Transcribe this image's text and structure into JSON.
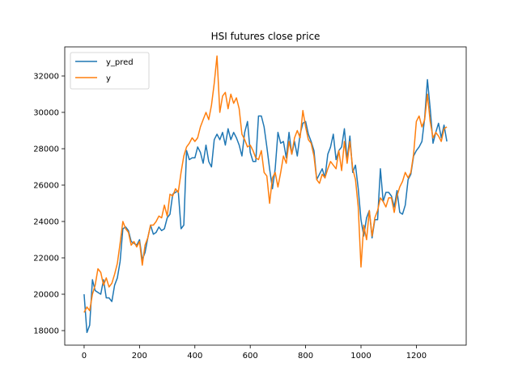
{
  "chart_data": {
    "type": "line",
    "title": "HSI futures close price",
    "xlabel": "",
    "ylabel": "",
    "xlim": [
      -70,
      1380
    ],
    "ylim": [
      17200,
      33600
    ],
    "xticks": [
      0,
      200,
      400,
      600,
      800,
      1000,
      1200
    ],
    "yticks": [
      18000,
      20000,
      22000,
      24000,
      26000,
      28000,
      30000,
      32000
    ],
    "grid": false,
    "legend": "top-left",
    "colors": {
      "y_pred": "#1f77b4",
      "y": "#ff7f0e"
    },
    "series": [
      {
        "name": "y_pred",
        "x": [
          0,
          10,
          20,
          30,
          40,
          50,
          60,
          70,
          80,
          90,
          100,
          110,
          120,
          130,
          140,
          150,
          160,
          170,
          180,
          190,
          200,
          210,
          220,
          230,
          240,
          250,
          260,
          270,
          280,
          290,
          300,
          310,
          320,
          330,
          340,
          350,
          360,
          370,
          380,
          390,
          400,
          410,
          420,
          430,
          440,
          450,
          460,
          470,
          480,
          490,
          500,
          510,
          520,
          530,
          540,
          550,
          560,
          570,
          580,
          590,
          600,
          610,
          620,
          630,
          640,
          650,
          660,
          670,
          680,
          690,
          700,
          710,
          720,
          730,
          740,
          750,
          760,
          770,
          780,
          790,
          800,
          810,
          820,
          830,
          840,
          850,
          860,
          870,
          880,
          890,
          900,
          910,
          920,
          930,
          940,
          950,
          960,
          970,
          980,
          990,
          1000,
          1010,
          1020,
          1030,
          1040,
          1050,
          1060,
          1070,
          1080,
          1090,
          1100,
          1110,
          1120,
          1130,
          1140,
          1150,
          1160,
          1170,
          1180,
          1190,
          1200,
          1210,
          1220,
          1230,
          1240,
          1250,
          1260,
          1270,
          1280,
          1290,
          1300,
          1310
        ],
        "values": [
          20000,
          17900,
          18300,
          20800,
          20200,
          20100,
          20000,
          20800,
          19800,
          19800,
          19600,
          20500,
          20900,
          21800,
          23600,
          23700,
          23500,
          22900,
          22800,
          22700,
          23000,
          21900,
          22300,
          23100,
          23800,
          23300,
          23400,
          23700,
          23500,
          23600,
          24200,
          24400,
          25500,
          25600,
          25700,
          23600,
          23800,
          27900,
          27400,
          27500,
          27500,
          28100,
          27800,
          27200,
          28200,
          27300,
          27000,
          28500,
          28800,
          28500,
          28900,
          28200,
          29100,
          28500,
          28900,
          28600,
          28200,
          27600,
          28900,
          29500,
          27800,
          27300,
          27300,
          29800,
          29800,
          29200,
          28100,
          26900,
          25800,
          26900,
          28900,
          28300,
          28400,
          27500,
          28900,
          27700,
          28400,
          27600,
          28800,
          29400,
          29500,
          28800,
          28400,
          27900,
          26300,
          26600,
          26900,
          26400,
          27700,
          28100,
          28800,
          27400,
          27900,
          28100,
          29100,
          27400,
          28700,
          26700,
          27100,
          25800,
          24100,
          23200,
          24200,
          24600,
          23100,
          24100,
          24100,
          26900,
          25100,
          25600,
          25600,
          25400,
          24800,
          25700,
          24500,
          24400,
          24900,
          26300,
          26600,
          27600,
          27900,
          28100,
          28400,
          29700,
          31800,
          30200,
          28300,
          28900,
          29400,
          28600,
          29300,
          28400
        ]
      },
      {
        "name": "y",
        "x": [
          0,
          10,
          20,
          30,
          40,
          50,
          60,
          70,
          80,
          90,
          100,
          110,
          120,
          130,
          140,
          150,
          160,
          170,
          180,
          190,
          200,
          210,
          220,
          230,
          240,
          250,
          260,
          270,
          280,
          290,
          300,
          310,
          320,
          330,
          340,
          350,
          360,
          370,
          380,
          390,
          400,
          410,
          420,
          430,
          440,
          450,
          460,
          470,
          480,
          490,
          500,
          510,
          520,
          530,
          540,
          550,
          560,
          570,
          580,
          590,
          600,
          610,
          620,
          630,
          640,
          650,
          660,
          670,
          680,
          690,
          700,
          710,
          720,
          730,
          740,
          750,
          760,
          770,
          780,
          790,
          800,
          810,
          820,
          830,
          840,
          850,
          860,
          870,
          880,
          890,
          900,
          910,
          920,
          930,
          940,
          950,
          960,
          970,
          980,
          990,
          1000,
          1010,
          1020,
          1030,
          1040,
          1050,
          1060,
          1070,
          1080,
          1090,
          1100,
          1110,
          1120,
          1130,
          1140,
          1150,
          1160,
          1170,
          1180,
          1190,
          1200,
          1210,
          1220,
          1230,
          1240,
          1250,
          1260,
          1270,
          1280,
          1290,
          1300,
          1310
        ],
        "values": [
          19000,
          19300,
          19100,
          20000,
          20500,
          21400,
          21200,
          20500,
          20900,
          20400,
          20600,
          21100,
          21700,
          22800,
          24000,
          23600,
          23400,
          22700,
          22900,
          22600,
          22900,
          21600,
          22700,
          23100,
          23800,
          23800,
          24000,
          24300,
          24200,
          24900,
          24300,
          25500,
          25400,
          25800,
          25600,
          26700,
          27600,
          28100,
          28300,
          28600,
          28400,
          28600,
          29200,
          29600,
          30000,
          29600,
          30400,
          31600,
          33100,
          30000,
          30900,
          31100,
          30200,
          31000,
          30500,
          30800,
          30200,
          28800,
          28500,
          28100,
          28200,
          27900,
          27500,
          27400,
          27900,
          26700,
          26500,
          25000,
          26400,
          26700,
          25900,
          26700,
          27600,
          27200,
          28400,
          27700,
          28600,
          29000,
          28600,
          30100,
          29200,
          28500,
          28300,
          27600,
          26300,
          26100,
          26600,
          26400,
          26900,
          27300,
          27100,
          26900,
          27900,
          26800,
          28400,
          27200,
          28400,
          26900,
          26300,
          24800,
          21500,
          23800,
          23000,
          24600,
          23200,
          24200,
          24600,
          25300,
          25100,
          24800,
          25300,
          25300,
          24500,
          25400,
          25900,
          26200,
          26700,
          26400,
          26700,
          27700,
          29500,
          29800,
          29200,
          29600,
          31000,
          29500,
          28600,
          28900,
          28700,
          28400,
          29100,
          29200
        ]
      }
    ]
  }
}
